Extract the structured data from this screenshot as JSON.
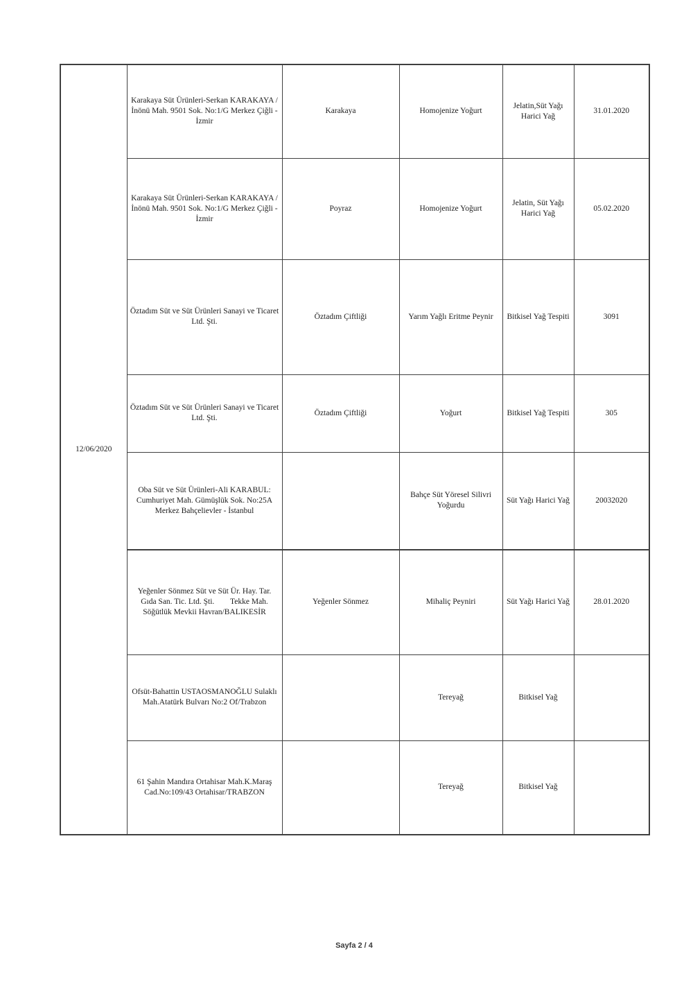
{
  "table": {
    "group_date": "12/06/2020",
    "rows": [
      {
        "company": "Karakaya Süt Ürünleri-Serkan KARAKAYA / İnönü Mah. 9501 Sok. No:1/G Merkez Çiğli - İzmir",
        "brand": "Karakaya",
        "product": "Homojenize Yoğurt",
        "finding": "Jelatin,Süt Yağı Harici Yağ",
        "value": "31.01.2020"
      },
      {
        "company": "Karakaya Süt Ürünleri-Serkan KARAKAYA / İnönü Mah. 9501 Sok. No:1/G Merkez Çiğli - İzmir",
        "brand": "Poyraz",
        "product": "Homojenize Yoğurt",
        "finding": "Jelatin, Süt Yağı Harici Yağ",
        "value": "05.02.2020"
      },
      {
        "company": "Öztadım Süt ve Süt Ürünleri Sanayi ve Ticaret Ltd. Şti.",
        "brand": "Öztadım Çiftliği",
        "product": "Yarım Yağlı Eritme Peynir",
        "finding": "Bitkisel Yağ Tespiti",
        "value": "3091"
      },
      {
        "company": "Öztadım Süt ve Süt Ürünleri Sanayi ve Ticaret Ltd. Şti.",
        "brand": "Öztadım Çiftliği",
        "product": "Yoğurt",
        "finding": "Bitkisel Yağ Tespiti",
        "value": "305"
      },
      {
        "company": "Oba Süt ve Süt Ürünleri-Ali KARABUL: Cumhuriyet Mah. Gümüşlük Sok. No:25A Merkez Bahçelievler - İstanbul",
        "brand": "",
        "product": "Bahçe Süt Yöresel Silivri Yoğurdu",
        "finding": "Süt Yağı Harici Yağ",
        "value": "20032020"
      },
      {
        "company": "Yeğenler Sönmez Süt ve Süt Ür. Hay. Tar. Gıda San. Tic. Ltd. Şti.        Tekke Mah. Söğütlük Mevkii Havran/BALIKESİR",
        "brand": "Yeğenler Sönmez",
        "product": "Mihaliç Peyniri",
        "finding": "Süt Yağı Harici Yağ",
        "value": "28.01.2020"
      },
      {
        "company": "Ofsüt-Bahattin USTAOSMANOĞLU Sulaklı Mah.Atatürk Bulvarı No:2 Of/Trabzon",
        "brand": "",
        "product": "Tereyağ",
        "finding": "Bitkisel Yağ",
        "value": ""
      },
      {
        "company": "61 Şahin Mandıra Ortahisar Mah.K.Maraş Cad.No:109/43 Ortahisar/TRABZON",
        "brand": "",
        "product": "Tereyağ",
        "finding": "Bitkisel Yağ",
        "value": ""
      }
    ]
  },
  "footer": {
    "text": "Sayfa 2 / 4"
  }
}
